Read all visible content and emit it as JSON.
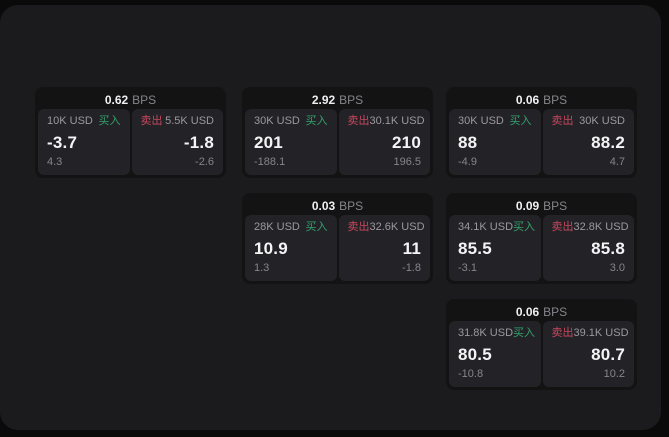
{
  "labels": {
    "bps_unit": "BPS",
    "buy": "买入",
    "sell": "卖出"
  },
  "colors": {
    "background": "#0a0a0b",
    "panel": "#1b1b1d",
    "card": "#131314",
    "subcard": "#232327",
    "buy_green": "#33a06d",
    "sell_red": "#c7475e",
    "value_white": "#f4f4f6",
    "label_gray": "#9a9a9e"
  },
  "cards": [
    {
      "bps": "0.62",
      "buy": {
        "size": "10K USD",
        "price": "-3.7",
        "delta": "4.3"
      },
      "sell": {
        "size": "5.5K USD",
        "price": "-1.8",
        "delta": "-2.6"
      }
    },
    {
      "bps": "2.92",
      "buy": {
        "size": "30K USD",
        "price": "201",
        "delta": "-188.1"
      },
      "sell": {
        "size": "30.1K USD",
        "price": "210",
        "delta": "196.5"
      }
    },
    {
      "bps": "0.06",
      "buy": {
        "size": "30K USD",
        "price": "88",
        "delta": "-4.9"
      },
      "sell": {
        "size": "30K USD",
        "price": "88.2",
        "delta": "4.7"
      }
    },
    {
      "bps": "0.03",
      "buy": {
        "size": "28K USD",
        "price": "10.9",
        "delta": "1.3"
      },
      "sell": {
        "size": "32.6K USD",
        "price": "11",
        "delta": "-1.8"
      }
    },
    {
      "bps": "0.09",
      "buy": {
        "size": "34.1K USD",
        "price": "85.5",
        "delta": "-3.1"
      },
      "sell": {
        "size": "32.8K USD",
        "price": "85.8",
        "delta": "3.0"
      }
    },
    {
      "bps": "0.06",
      "buy": {
        "size": "31.8K USD",
        "price": "80.5",
        "delta": "-10.8"
      },
      "sell": {
        "size": "39.1K USD",
        "price": "80.7",
        "delta": "10.2"
      }
    }
  ]
}
